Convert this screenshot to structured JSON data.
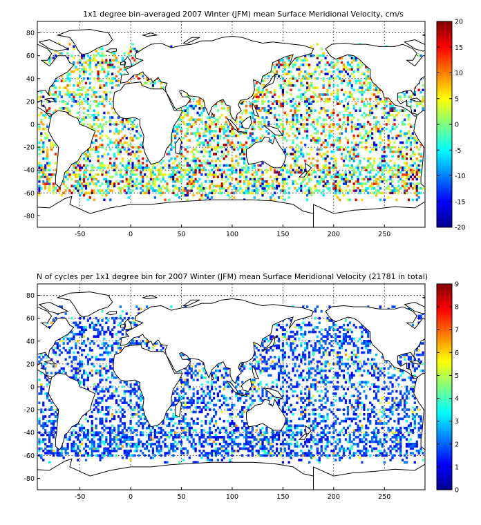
{
  "maps": [
    {
      "title": "1x1 degree bin–averaged 2007 Winter (JFM) mean Surface Meridional Velocity, cm/s",
      "lon_ticks": [
        -50,
        0,
        50,
        100,
        150,
        200,
        250
      ],
      "lat_ticks": [
        80,
        60,
        40,
        20,
        0,
        -20,
        -40,
        -60,
        -80
      ],
      "lon_range": [
        -92,
        290
      ],
      "lat_range": [
        -90,
        90
      ],
      "colorbar": {
        "min": -20,
        "max": 20,
        "ticks": [
          20,
          15,
          10,
          5,
          0,
          -5,
          -10,
          -15,
          -20
        ]
      },
      "colormap": "jet"
    },
    {
      "title": "N of cycles per 1x1 degree bin for 2007 Winter (JFM) mean Surface Meridional Velocity (21781 in total)",
      "lon_ticks": [
        -50,
        0,
        50,
        100,
        150,
        200,
        250
      ],
      "lat_ticks": [
        80,
        60,
        40,
        20,
        0,
        -20,
        -40,
        -60,
        -80
      ],
      "lon_range": [
        -92,
        290
      ],
      "lat_range": [
        -90,
        90
      ],
      "colorbar": {
        "min": 0,
        "max": 9,
        "ticks": [
          9,
          8,
          7,
          6,
          5,
          4,
          3,
          2,
          1,
          0
        ]
      },
      "colormap": "jet"
    }
  ]
}
